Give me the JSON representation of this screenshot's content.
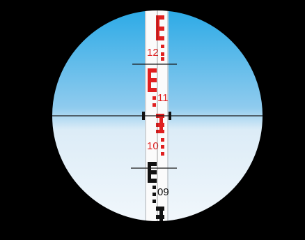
{
  "scene": {
    "subject": "leveling-rod-through-eyepiece",
    "colors": {
      "background": "#000000",
      "sky_top": "#29a9e6",
      "sky_bottom": "#f3f8fc",
      "rod_face": "#fbfbfb",
      "rod_red": "#e02020",
      "rod_black": "#111111",
      "crosshair": "#1a1a1a"
    }
  },
  "rod": {
    "labels": {
      "l12": "12",
      "l11": "11",
      "l10": "10",
      "l09": "09"
    }
  }
}
